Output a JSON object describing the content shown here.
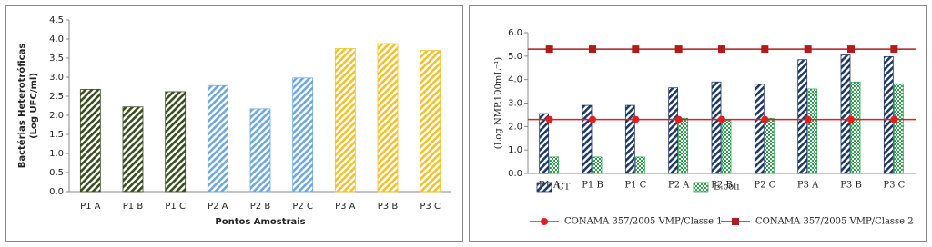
{
  "chart_data": [
    {
      "type": "bar",
      "y_label_lines": [
        "Bactérias Heterotróficas",
        "(Log UFC/ml)"
      ],
      "x_label": "Pontos Amostrais",
      "categories": [
        "P1 A",
        "P1 B",
        "P1 C",
        "P2 A",
        "P2 B",
        "P2 C",
        "P3 A",
        "P3 B",
        "P3 C"
      ],
      "values": [
        2.68,
        2.22,
        2.62,
        2.78,
        2.17,
        2.98,
        3.75,
        3.88,
        3.7
      ],
      "colors": [
        "#3b4d1f",
        "#3b4d1f",
        "#3b4d1f",
        "#6fa8dc",
        "#6fa8dc",
        "#6fa8dc",
        "#f2c12e",
        "#f2c12e",
        "#f2c12e"
      ],
      "pattern": "stripes",
      "ylim": [
        0,
        4.5
      ],
      "yticks": [
        {
          "value": 0,
          "label": "0.0"
        },
        0.5,
        {
          "value": 1,
          "label": "1.0"
        },
        1.5,
        {
          "value": 2,
          "label": "2.0"
        },
        2.5,
        {
          "value": 3,
          "label": "3.0"
        },
        3.5,
        {
          "value": 4,
          "label": "4.0"
        },
        4.5
      ]
    },
    {
      "type": "combo",
      "y_label": "(Log NMP.100mL⁻¹)",
      "categories": [
        "P1 A",
        "P1 B",
        "P1 C",
        "P2 A",
        "P2 B",
        "P2 C",
        "P3 A",
        "P3 B",
        "P3 C"
      ],
      "series": [
        {
          "name": "CT",
          "type": "bar",
          "pattern": "stripes",
          "color": "#1f3864",
          "values": [
            2.55,
            2.9,
            2.9,
            3.65,
            3.9,
            3.8,
            4.85,
            5.05,
            4.98
          ]
        },
        {
          "name": "E.coli",
          "type": "bar",
          "pattern": "check",
          "color": "#2e9e4f",
          "values": [
            0.7,
            0.7,
            0.7,
            2.35,
            2.25,
            2.35,
            3.6,
            3.9,
            3.8
          ]
        },
        {
          "name": "CONAMA 357/2005 VMP/Classe 1",
          "type": "line",
          "marker": "circle",
          "color": "#e02020",
          "values": [
            2.3,
            2.3,
            2.3,
            2.3,
            2.3,
            2.3,
            2.3,
            2.3,
            2.3
          ]
        },
        {
          "name": "CONAMA 357/2005 VMP/Classe 2",
          "type": "line",
          "marker": "square",
          "color": "#b01c1c",
          "values": [
            5.3,
            5.3,
            5.3,
            5.3,
            5.3,
            5.3,
            5.3,
            5.3,
            5.3
          ]
        }
      ],
      "ylim": [
        0,
        6
      ],
      "yticks": [
        {
          "value": 0,
          "label": "0.0"
        },
        {
          "value": 1,
          "label": "1.0"
        },
        {
          "value": 2,
          "label": "2.0"
        },
        {
          "value": 3,
          "label": "3.0"
        },
        {
          "value": 4,
          "label": "4.0"
        },
        {
          "value": 5,
          "label": "5.0"
        },
        {
          "value": 6,
          "label": "6.0"
        }
      ]
    }
  ]
}
